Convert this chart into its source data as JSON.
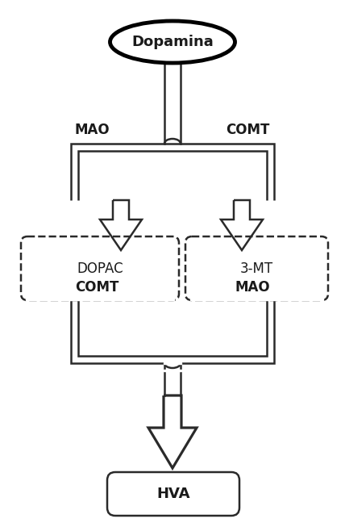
{
  "bg_color": "#ffffff",
  "dopamina_label": "Dopamina",
  "dopac_label": "DOPAC",
  "mt_label": "3-MT",
  "hva_label": "HVA",
  "mao_top_label": "MAO",
  "comt_top_label": "COMT",
  "comt_bottom_label": "COMT",
  "mao_bottom_label": "MAO",
  "lw": 1.8,
  "ellipse_lw": 3.5,
  "text_color": "#1a1a1a",
  "line_color": "#2a2a2a",
  "fig_w": 4.28,
  "fig_h": 6.53,
  "dpi": 100
}
